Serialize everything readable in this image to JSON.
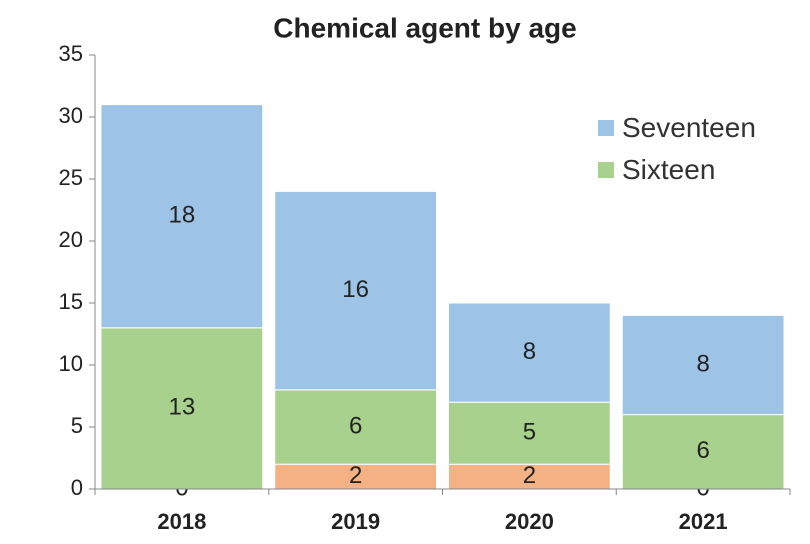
{
  "chart_data": {
    "type": "stacked_bar",
    "title": "Chemical agent by age",
    "categories": [
      "2018",
      "2019",
      "2020",
      "2021"
    ],
    "series": [
      {
        "color": "#f4b183",
        "values": [
          0,
          2,
          2,
          0
        ]
      },
      {
        "name": "Sixteen",
        "color": "#a9d18e",
        "values": [
          13,
          6,
          5,
          6
        ]
      },
      {
        "name": "Seventeen",
        "color": "#9dc3e6",
        "values": [
          18,
          16,
          8,
          8
        ]
      }
    ],
    "ylim": [
      0,
      35
    ],
    "yticks": [
      0,
      5,
      10,
      15,
      20,
      25,
      30,
      35
    ],
    "legend": "upper right"
  }
}
